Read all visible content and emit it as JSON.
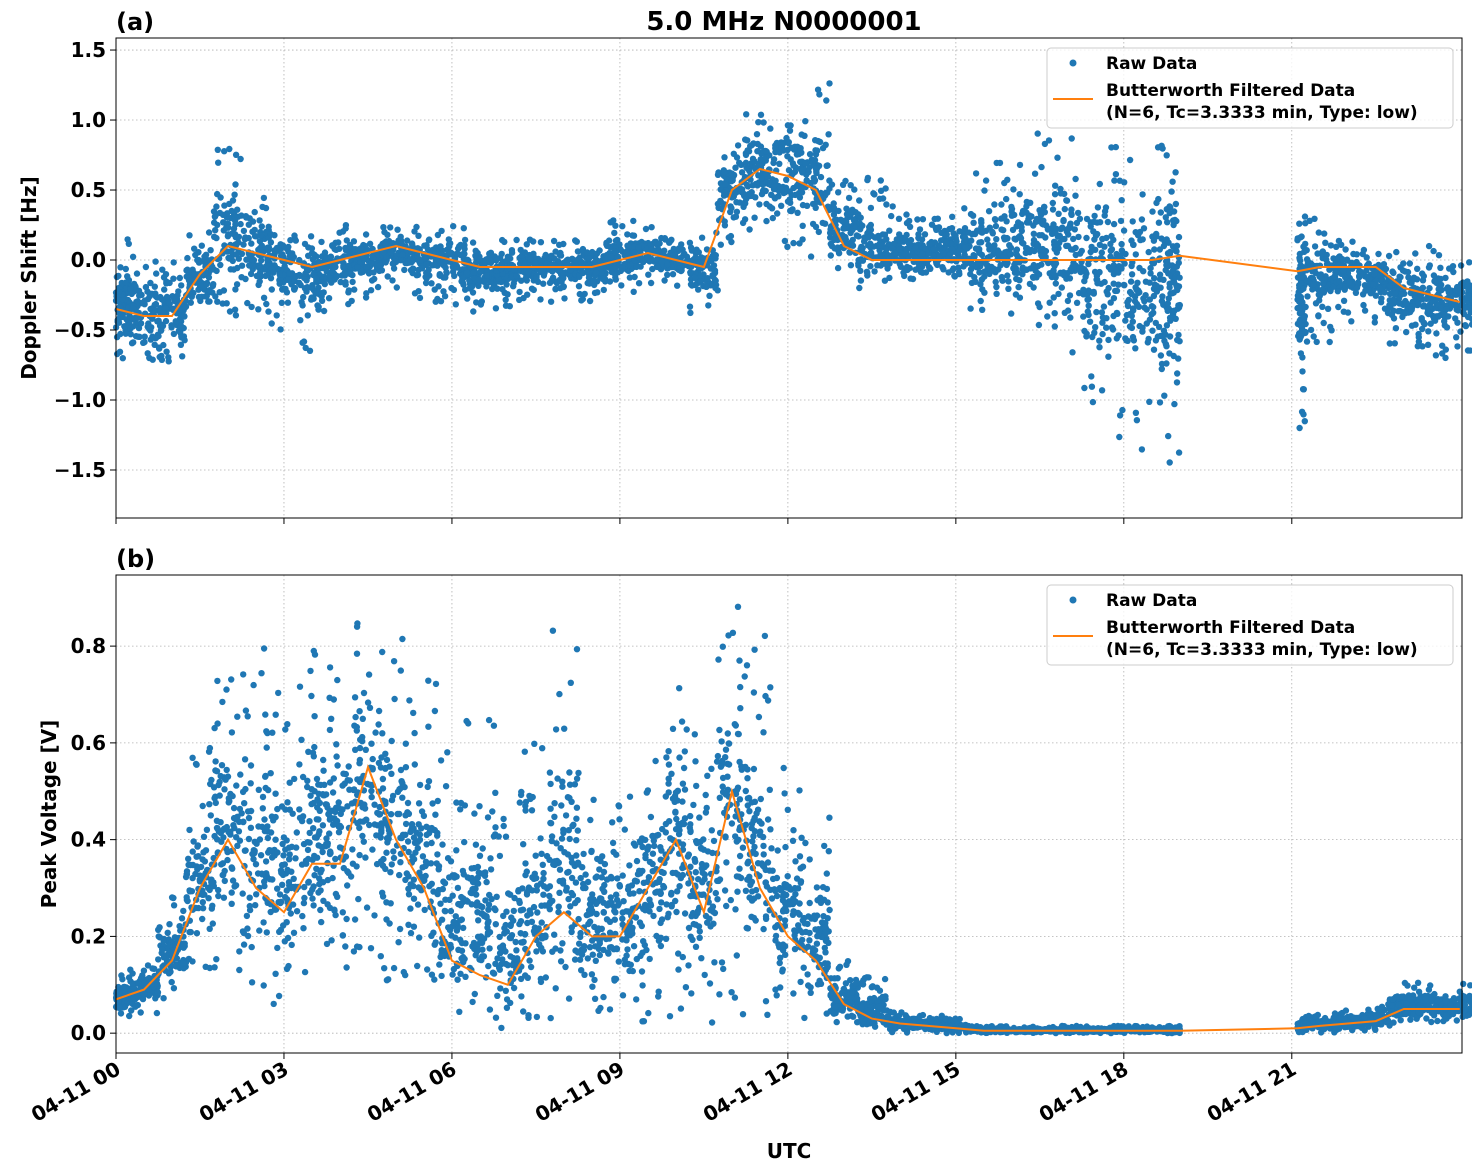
{
  "title": "5.0 MHz N0000001",
  "xlabel": "UTC",
  "x_tick_labels": [
    "04-11 00",
    "04-11 03",
    "04-11 06",
    "04-11 09",
    "04-11 12",
    "04-11 15",
    "04-11 18",
    "04-11 21"
  ],
  "x_tick_hours": [
    0,
    3,
    6,
    9,
    12,
    15,
    18,
    21
  ],
  "colors": {
    "raw": "#1f77b4",
    "filtered": "#ff7f0e"
  },
  "legend": {
    "raw": "Raw Data",
    "filtered_line1": "Butterworth Filtered Data",
    "filtered_line2": "(N=6, Tc=3.3333 min, Type: low)",
    "placement": "top-right"
  },
  "chart_data": [
    {
      "type": "scatter",
      "panel_label": "(a)",
      "ylabel": "Doppler Shift [Hz]",
      "xlim_hours": [
        0,
        24.04
      ],
      "ylim": [
        -1.843,
        1.586
      ],
      "y_ticks": [
        1.5,
        1.0,
        0.5,
        0.0,
        -0.5,
        -1.0,
        -1.5
      ],
      "y_tick_labels": [
        "1.5",
        "1.0",
        "0.5",
        "0.0",
        "−0.5",
        "−1.0",
        "−1.5"
      ],
      "grid": true,
      "t_hours": [
        0,
        0.5,
        1,
        1.5,
        2,
        2.5,
        3,
        3.5,
        4,
        4.5,
        5,
        5.5,
        6,
        6.5,
        7,
        7.5,
        8,
        8.5,
        9,
        9.5,
        10,
        10.5,
        11,
        11.5,
        12,
        12.5,
        13,
        13.5,
        14,
        14.5,
        15,
        15.5,
        16,
        16.5,
        17,
        17.5,
        18,
        18.5,
        19,
        21.1,
        21.5,
        22,
        22.5,
        23,
        23.5,
        24
      ],
      "filtered": [
        -0.35,
        -0.4,
        -0.4,
        -0.1,
        0.1,
        0.05,
        0.0,
        -0.05,
        0.0,
        0.05,
        0.1,
        0.05,
        0.0,
        -0.05,
        -0.05,
        -0.05,
        -0.05,
        -0.05,
        0.0,
        0.05,
        0.0,
        -0.05,
        0.5,
        0.65,
        0.6,
        0.5,
        0.1,
        0.0,
        0.0,
        0.0,
        0.0,
        0.0,
        0.0,
        0.0,
        0.0,
        0.0,
        0.0,
        0.0,
        0.03,
        -0.08,
        -0.05,
        -0.05,
        -0.05,
        -0.2,
        -0.25,
        -0.3
      ],
      "raw_min": [
        -0.75,
        -0.8,
        -0.75,
        -0.5,
        -0.4,
        -0.4,
        -0.5,
        -0.7,
        -0.35,
        -0.3,
        -0.2,
        -0.3,
        -0.4,
        -0.4,
        -0.35,
        -0.3,
        -0.3,
        -0.3,
        -0.25,
        -0.2,
        -0.2,
        -0.4,
        0.1,
        0.2,
        0.05,
        0.0,
        -0.1,
        -0.2,
        -0.15,
        -0.1,
        -0.2,
        -0.4,
        -0.5,
        -0.5,
        -0.7,
        -1.1,
        -1.3,
        -1.5,
        -1.5,
        -1.2,
        -0.6,
        -0.45,
        -0.45,
        -0.6,
        -0.7,
        -0.65
      ],
      "raw_max": [
        0.15,
        0.1,
        0.05,
        0.2,
        0.8,
        0.45,
        0.3,
        0.2,
        0.25,
        0.2,
        0.25,
        0.25,
        0.25,
        0.2,
        0.15,
        0.15,
        0.15,
        0.15,
        0.3,
        0.25,
        0.2,
        0.2,
        0.9,
        1.1,
        1.3,
        1.3,
        0.7,
        0.6,
        0.4,
        0.3,
        0.5,
        0.7,
        0.8,
        1.0,
        0.9,
        0.8,
        0.9,
        0.85,
        0.8,
        0.35,
        0.3,
        0.15,
        0.1,
        0.1,
        0.1,
        0.05
      ]
    },
    {
      "type": "scatter",
      "panel_label": "(b)",
      "ylabel": "Peak Voltage [V]",
      "xlim_hours": [
        0,
        24.04
      ],
      "ylim": [
        -0.041,
        0.947
      ],
      "y_ticks": [
        0.8,
        0.6,
        0.4,
        0.2,
        0.0
      ],
      "y_tick_labels": [
        "0.8",
        "0.6",
        "0.4",
        "0.2",
        "0.0"
      ],
      "grid": true,
      "t_hours": [
        0,
        0.5,
        1,
        1.5,
        2,
        2.5,
        3,
        3.5,
        4,
        4.5,
        5,
        5.5,
        6,
        6.5,
        7,
        7.5,
        8,
        8.5,
        9,
        9.5,
        10,
        10.5,
        11,
        11.5,
        12,
        12.5,
        13,
        13.5,
        14,
        14.5,
        15,
        15.5,
        16,
        16.5,
        17,
        17.5,
        18,
        18.5,
        19,
        21.1,
        21.5,
        22,
        22.5,
        23,
        23.5,
        24
      ],
      "filtered": [
        0.07,
        0.09,
        0.15,
        0.3,
        0.4,
        0.3,
        0.25,
        0.35,
        0.35,
        0.55,
        0.4,
        0.3,
        0.15,
        0.12,
        0.1,
        0.2,
        0.25,
        0.2,
        0.2,
        0.3,
        0.4,
        0.25,
        0.5,
        0.3,
        0.2,
        0.15,
        0.06,
        0.03,
        0.02,
        0.015,
        0.01,
        0.005,
        0.005,
        0.005,
        0.005,
        0.005,
        0.005,
        0.005,
        0.005,
        0.01,
        0.015,
        0.02,
        0.025,
        0.05,
        0.05,
        0.05
      ],
      "raw_min": [
        0.03,
        0.04,
        0.06,
        0.1,
        0.1,
        0.08,
        0.05,
        0.07,
        0.08,
        0.15,
        0.1,
        0.06,
        0.03,
        0.02,
        0.01,
        0.02,
        0.02,
        0.02,
        0.02,
        0.02,
        0.03,
        0.02,
        0.03,
        0.03,
        0.02,
        0.03,
        0.02,
        0.01,
        0.0,
        0.0,
        0.0,
        0.0,
        0.0,
        0.0,
        0.0,
        0.0,
        0.0,
        0.0,
        0.0,
        0.0,
        0.0,
        0.0,
        0.005,
        0.02,
        0.02,
        0.02
      ],
      "raw_max": [
        0.12,
        0.15,
        0.3,
        0.6,
        0.75,
        0.8,
        0.8,
        0.85,
        0.8,
        0.87,
        0.85,
        0.75,
        0.6,
        0.68,
        0.5,
        0.6,
        0.84,
        0.55,
        0.5,
        0.6,
        0.73,
        0.7,
        0.9,
        0.86,
        0.55,
        0.45,
        0.15,
        0.12,
        0.05,
        0.04,
        0.03,
        0.015,
        0.015,
        0.015,
        0.015,
        0.015,
        0.015,
        0.015,
        0.015,
        0.03,
        0.04,
        0.05,
        0.06,
        0.11,
        0.11,
        0.11
      ]
    }
  ]
}
